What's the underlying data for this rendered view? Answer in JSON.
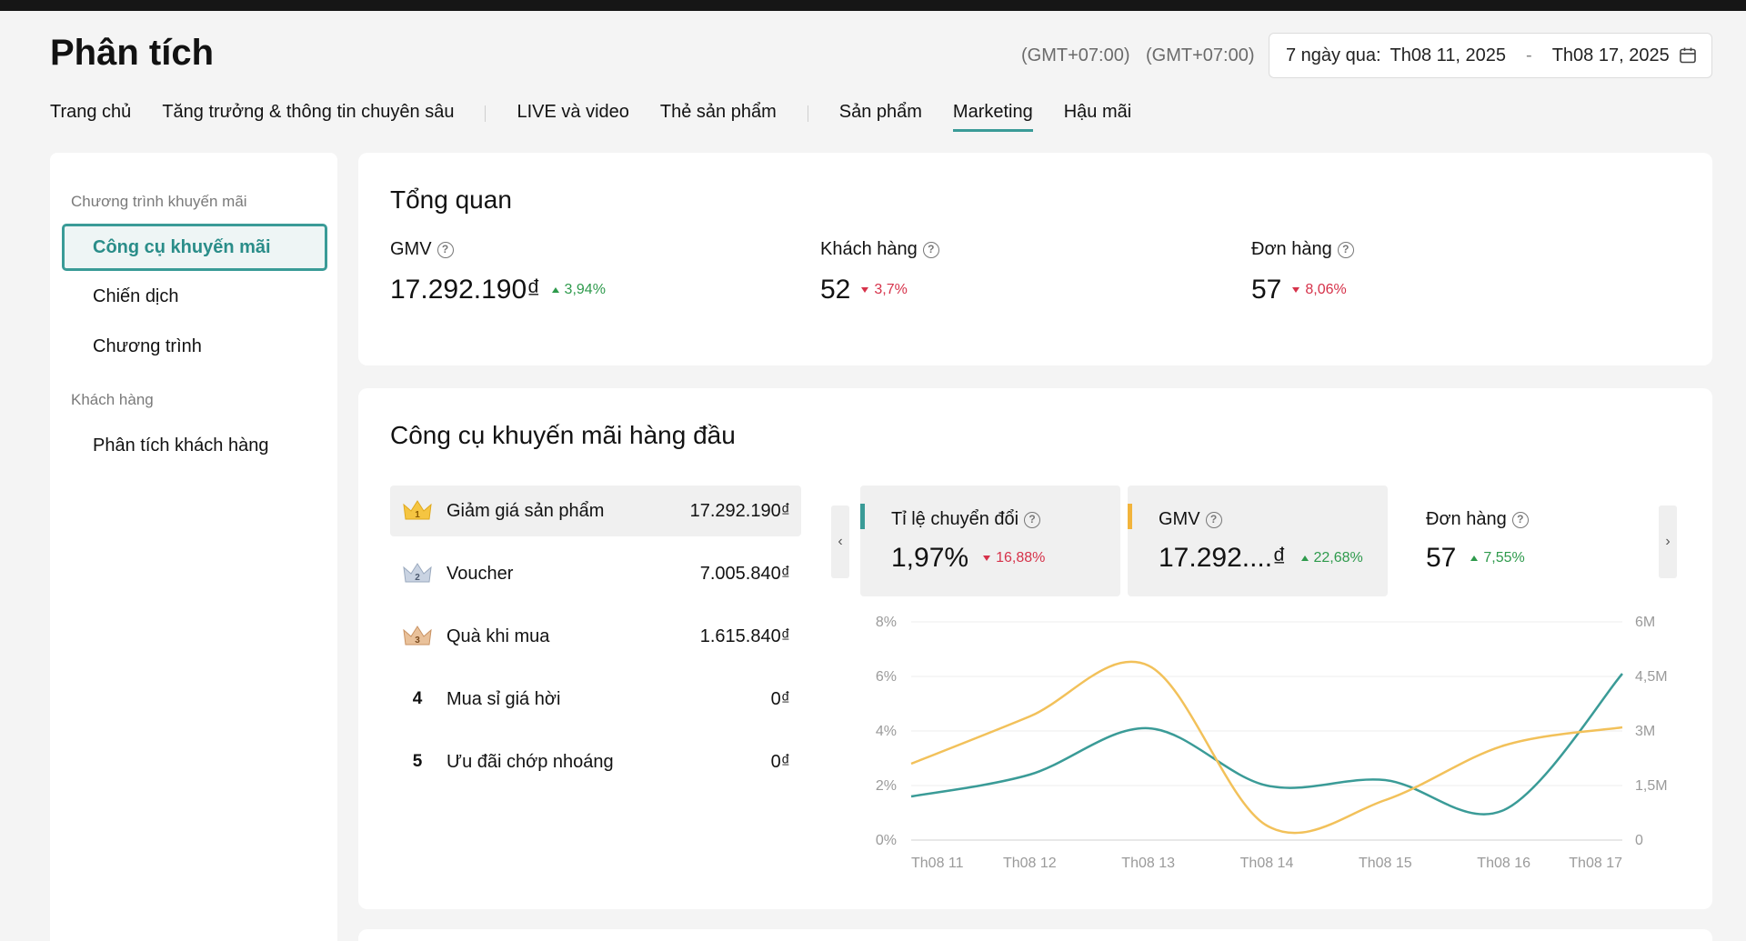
{
  "header": {
    "title": "Phân tích",
    "timezones": [
      "(GMT+07:00)",
      "(GMT+07:00)"
    ],
    "date_range": {
      "label": "7 ngày qua:",
      "start": "Th08 11, 2025",
      "separator": "-",
      "end": "Th08 17, 2025"
    }
  },
  "nav": {
    "tabs": [
      "Trang chủ",
      "Tăng trưởng & thông tin chuyên sâu",
      "LIVE và video",
      "Thẻ sản phẩm",
      "Sản phẩm",
      "Marketing",
      "Hậu mãi"
    ],
    "active": "Marketing"
  },
  "sidebar": {
    "section1": "Chương trình khuyến mãi",
    "items1": [
      "Công cụ khuyến mãi",
      "Chiến dịch",
      "Chương trình"
    ],
    "section2": "Khách hàng",
    "items2": [
      "Phân tích khách hàng"
    ],
    "active": "Công cụ khuyến mãi"
  },
  "overview": {
    "title": "Tổng quan",
    "metrics": [
      {
        "label": "GMV",
        "value": "17.292.190₫",
        "change": "3,94%",
        "direction": "up"
      },
      {
        "label": "Khách hàng",
        "value": "52",
        "change": "3,7%",
        "direction": "down"
      },
      {
        "label": "Đơn hàng",
        "value": "57",
        "change": "8,06%",
        "direction": "down"
      }
    ]
  },
  "top_tools": {
    "title": "Công cụ khuyến mãi hàng đầu",
    "list": [
      {
        "rank": "1",
        "name": "Giảm giá sản phẩm",
        "value": "17.292.190₫",
        "rank_icon": "gold-crown-icon"
      },
      {
        "rank": "2",
        "name": "Voucher",
        "value": "7.005.840₫",
        "rank_icon": "silver-crown-icon"
      },
      {
        "rank": "3",
        "name": "Quà khi mua",
        "value": "1.615.840₫",
        "rank_icon": "bronze-crown-icon"
      },
      {
        "rank": "4",
        "name": "Mua sỉ giá hời",
        "value": "0₫"
      },
      {
        "rank": "5",
        "name": "Ưu đãi chớp nhoáng",
        "value": "0₫"
      }
    ],
    "metric_tabs": [
      {
        "label": "Tỉ lệ chuyển đổi",
        "value": "1,97%",
        "change": "16,88%",
        "direction": "down",
        "color": "#3a9b97",
        "selected": true
      },
      {
        "label": "GMV",
        "value": "17.292....₫",
        "change": "22,68%",
        "direction": "up",
        "color": "#f2b43c",
        "selected": true
      },
      {
        "label": "Đơn hàng",
        "value": "57",
        "change": "7,55%",
        "direction": "up",
        "selected": false
      }
    ],
    "prev_arrow": "‹",
    "next_arrow": "›"
  },
  "chart_data": {
    "type": "line",
    "categories": [
      "Th08 11",
      "Th08 12",
      "Th08 13",
      "Th08 14",
      "Th08 15",
      "Th08 16",
      "Th08 17"
    ],
    "y_left": {
      "ticks": [
        "0%",
        "2%",
        "4%",
        "6%",
        "8%"
      ],
      "range": [
        0,
        8
      ]
    },
    "y_right": {
      "ticks": [
        "0",
        "1,5M",
        "3M",
        "4,5M",
        "6M"
      ],
      "range": [
        0,
        6
      ]
    },
    "grid": true,
    "series": [
      {
        "axis": "left",
        "color": "#3a9b97",
        "values": [
          1.6,
          2.4,
          4.1,
          2.0,
          2.2,
          1.1,
          6.1
        ]
      },
      {
        "axis": "right",
        "color": "#f2c15a",
        "values": [
          2.1,
          3.4,
          4.8,
          0.4,
          1.1,
          2.6,
          3.1
        ]
      }
    ]
  },
  "colors": {
    "accent": "#3a9b97",
    "gmv": "#f2b43c",
    "up": "#2e9a4c",
    "down": "#d6324a"
  }
}
